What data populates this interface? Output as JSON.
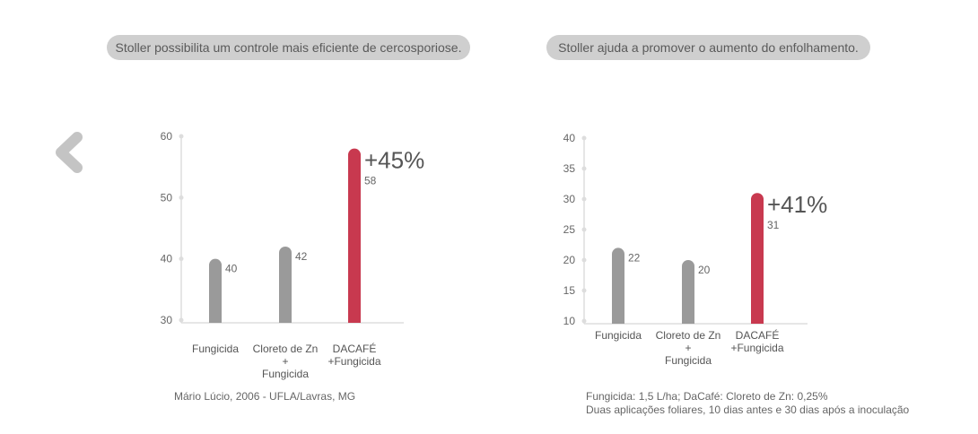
{
  "headers": [
    "Stoller possibilita um controle mais eficiente de cercosporiose.",
    "Stoller ajuda a promover o aumento do enfolhamento."
  ],
  "nav": {
    "back_icon": "chevron-left-icon"
  },
  "colors": {
    "gray_bar": "#9a9a9a",
    "highlight_bar": "#c8394f",
    "axis": "#dddddd"
  },
  "chart_data": [
    {
      "type": "bar",
      "categories": [
        [
          "Fungicida"
        ],
        [
          "Cloreto de Zn",
          "+",
          "Fungicida"
        ],
        [
          "DACAFÉ",
          "+Fungicida"
        ]
      ],
      "values": [
        40,
        42,
        58
      ],
      "value_labels": [
        "40",
        "42",
        "58"
      ],
      "highlight_index": 2,
      "highlight_label": "+45%",
      "ylim": [
        30,
        60
      ],
      "yticks": [
        30,
        40,
        50,
        60
      ],
      "note_lines": [
        "Mário Lúcio, 2006 - UFLA/Lavras, MG"
      ]
    },
    {
      "type": "bar",
      "categories": [
        [
          "Fungicida"
        ],
        [
          "Cloreto de Zn",
          "+",
          "Fungicida"
        ],
        [
          "DACAFÉ",
          "+Fungicida"
        ]
      ],
      "values": [
        22,
        20,
        31
      ],
      "value_labels": [
        "22",
        "20",
        "31"
      ],
      "highlight_index": 2,
      "highlight_label": "+41%",
      "ylim": [
        10,
        40
      ],
      "yticks": [
        10,
        15,
        20,
        25,
        30,
        35,
        40
      ],
      "note_lines": [
        "Fungicida: 1,5 L/ha; DaCafé: Cloreto de Zn: 0,25%",
        "Duas aplicações foliares, 10 dias antes e 30 dias após a inoculação"
      ]
    }
  ]
}
